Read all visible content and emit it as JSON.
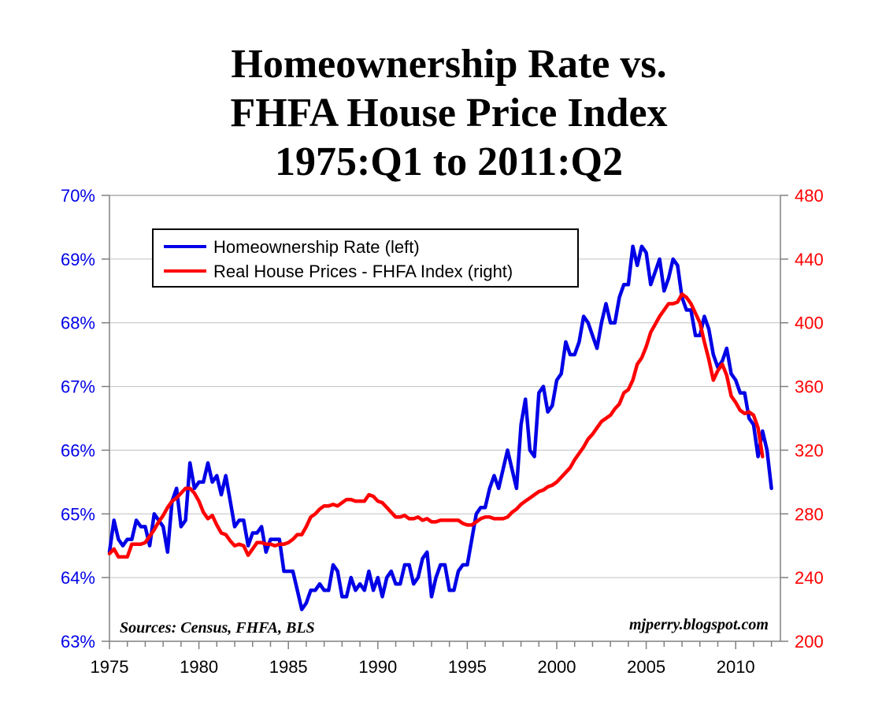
{
  "chart_data": {
    "type": "line",
    "title_lines": [
      "Homeownership Rate vs.",
      "FHFA House Price Index",
      "1975:Q1 to 2011:Q2"
    ],
    "x_ticks": [
      "1975",
      "1980",
      "1985",
      "1990",
      "1995",
      "2000",
      "2005",
      "2010"
    ],
    "x_range": [
      1975,
      2012.5
    ],
    "y_left": {
      "range": [
        63,
        70
      ],
      "ticks": [
        63,
        64,
        65,
        66,
        67,
        68,
        69,
        70
      ],
      "tick_labels": [
        "63%",
        "64%",
        "65%",
        "66%",
        "67%",
        "68%",
        "69%",
        "70%"
      ],
      "color": "#0000e6"
    },
    "y_right": {
      "range": [
        200,
        480
      ],
      "ticks": [
        200,
        240,
        280,
        320,
        360,
        400,
        440,
        480
      ],
      "tick_labels": [
        "200",
        "240",
        "280",
        "320",
        "360",
        "400",
        "440",
        "480"
      ],
      "color": "#ff0000"
    },
    "grid": "horizontal",
    "legend_position": "top-left",
    "series": [
      {
        "name": "Homeownership Rate (left)",
        "axis": "left",
        "color": "#0000e6",
        "points": [
          [
            1975.0,
            64.4
          ],
          [
            1975.25,
            64.9
          ],
          [
            1975.5,
            64.6
          ],
          [
            1975.75,
            64.5
          ],
          [
            1976.0,
            64.6
          ],
          [
            1976.25,
            64.6
          ],
          [
            1976.5,
            64.9
          ],
          [
            1976.75,
            64.8
          ],
          [
            1977.0,
            64.8
          ],
          [
            1977.25,
            64.5
          ],
          [
            1977.5,
            65.0
          ],
          [
            1977.75,
            64.9
          ],
          [
            1978.0,
            64.8
          ],
          [
            1978.25,
            64.4
          ],
          [
            1978.5,
            65.2
          ],
          [
            1978.75,
            65.4
          ],
          [
            1979.0,
            64.8
          ],
          [
            1979.25,
            64.9
          ],
          [
            1979.5,
            65.8
          ],
          [
            1979.75,
            65.4
          ],
          [
            1980.0,
            65.5
          ],
          [
            1980.25,
            65.5
          ],
          [
            1980.5,
            65.8
          ],
          [
            1980.75,
            65.5
          ],
          [
            1981.0,
            65.6
          ],
          [
            1981.25,
            65.3
          ],
          [
            1981.5,
            65.6
          ],
          [
            1981.75,
            65.2
          ],
          [
            1982.0,
            64.8
          ],
          [
            1982.25,
            64.9
          ],
          [
            1982.5,
            64.9
          ],
          [
            1982.75,
            64.5
          ],
          [
            1983.0,
            64.7
          ],
          [
            1983.25,
            64.7
          ],
          [
            1983.5,
            64.8
          ],
          [
            1983.75,
            64.4
          ],
          [
            1984.0,
            64.6
          ],
          [
            1984.25,
            64.6
          ],
          [
            1984.5,
            64.6
          ],
          [
            1984.75,
            64.1
          ],
          [
            1985.0,
            64.1
          ],
          [
            1985.25,
            64.1
          ],
          [
            1985.5,
            63.8
          ],
          [
            1985.75,
            63.5
          ],
          [
            1986.0,
            63.6
          ],
          [
            1986.25,
            63.8
          ],
          [
            1986.5,
            63.8
          ],
          [
            1986.75,
            63.9
          ],
          [
            1987.0,
            63.8
          ],
          [
            1987.25,
            63.8
          ],
          [
            1987.5,
            64.2
          ],
          [
            1987.75,
            64.1
          ],
          [
            1988.0,
            63.7
          ],
          [
            1988.25,
            63.7
          ],
          [
            1988.5,
            64.0
          ],
          [
            1988.75,
            63.8
          ],
          [
            1989.0,
            63.9
          ],
          [
            1989.25,
            63.8
          ],
          [
            1989.5,
            64.1
          ],
          [
            1989.75,
            63.8
          ],
          [
            1990.0,
            64.0
          ],
          [
            1990.25,
            63.7
          ],
          [
            1990.5,
            64.0
          ],
          [
            1990.75,
            64.1
          ],
          [
            1991.0,
            63.9
          ],
          [
            1991.25,
            63.9
          ],
          [
            1991.5,
            64.2
          ],
          [
            1991.75,
            64.2
          ],
          [
            1992.0,
            63.9
          ],
          [
            1992.25,
            64.0
          ],
          [
            1992.5,
            64.3
          ],
          [
            1992.75,
            64.4
          ],
          [
            1993.0,
            63.7
          ],
          [
            1993.25,
            64.0
          ],
          [
            1993.5,
            64.2
          ],
          [
            1993.75,
            64.2
          ],
          [
            1994.0,
            63.8
          ],
          [
            1994.25,
            63.8
          ],
          [
            1994.5,
            64.1
          ],
          [
            1994.75,
            64.2
          ],
          [
            1995.0,
            64.2
          ],
          [
            1995.25,
            64.6
          ],
          [
            1995.5,
            65.0
          ],
          [
            1995.75,
            65.1
          ],
          [
            1996.0,
            65.1
          ],
          [
            1996.25,
            65.4
          ],
          [
            1996.5,
            65.6
          ],
          [
            1996.75,
            65.4
          ],
          [
            1997.0,
            65.7
          ],
          [
            1997.25,
            66.0
          ],
          [
            1997.5,
            65.7
          ],
          [
            1997.75,
            65.4
          ],
          [
            1998.0,
            66.4
          ],
          [
            1998.25,
            66.8
          ],
          [
            1998.5,
            66.0
          ],
          [
            1998.75,
            65.9
          ],
          [
            1999.0,
            66.9
          ],
          [
            1999.25,
            67.0
          ],
          [
            1999.5,
            66.6
          ],
          [
            1999.75,
            66.7
          ],
          [
            2000.0,
            67.1
          ],
          [
            2000.25,
            67.2
          ],
          [
            2000.5,
            67.7
          ],
          [
            2000.75,
            67.5
          ],
          [
            2001.0,
            67.5
          ],
          [
            2001.25,
            67.7
          ],
          [
            2001.5,
            68.1
          ],
          [
            2001.75,
            68.0
          ],
          [
            2002.0,
            67.8
          ],
          [
            2002.25,
            67.6
          ],
          [
            2002.5,
            68.0
          ],
          [
            2002.75,
            68.3
          ],
          [
            2003.0,
            68.0
          ],
          [
            2003.25,
            68.0
          ],
          [
            2003.5,
            68.4
          ],
          [
            2003.75,
            68.6
          ],
          [
            2004.0,
            68.6
          ],
          [
            2004.25,
            69.2
          ],
          [
            2004.5,
            68.9
          ],
          [
            2004.75,
            69.2
          ],
          [
            2005.0,
            69.1
          ],
          [
            2005.25,
            68.6
          ],
          [
            2005.5,
            68.8
          ],
          [
            2005.75,
            69.0
          ],
          [
            2006.0,
            68.5
          ],
          [
            2006.25,
            68.7
          ],
          [
            2006.5,
            69.0
          ],
          [
            2006.75,
            68.9
          ],
          [
            2007.0,
            68.4
          ],
          [
            2007.25,
            68.2
          ],
          [
            2007.5,
            68.2
          ],
          [
            2007.75,
            67.8
          ],
          [
            2008.0,
            67.8
          ],
          [
            2008.25,
            68.1
          ],
          [
            2008.5,
            67.9
          ],
          [
            2008.75,
            67.5
          ],
          [
            2009.0,
            67.3
          ],
          [
            2009.25,
            67.4
          ],
          [
            2009.5,
            67.6
          ],
          [
            2009.75,
            67.2
          ],
          [
            2010.0,
            67.1
          ],
          [
            2010.25,
            66.9
          ],
          [
            2010.5,
            66.9
          ],
          [
            2010.75,
            66.5
          ],
          [
            2011.0,
            66.4
          ],
          [
            2011.25,
            65.9
          ],
          [
            2011.5,
            66.3
          ],
          [
            2011.75,
            66.0
          ],
          [
            2012.0,
            65.4
          ]
        ]
      },
      {
        "name": "Real House Prices - FHFA Index (right)",
        "axis": "right",
        "color": "#ff0000",
        "points": [
          [
            1975.0,
            255
          ],
          [
            1975.25,
            258
          ],
          [
            1975.5,
            253
          ],
          [
            1975.75,
            253
          ],
          [
            1976.0,
            253
          ],
          [
            1976.25,
            261
          ],
          [
            1976.5,
            261
          ],
          [
            1976.75,
            261
          ],
          [
            1977.0,
            262
          ],
          [
            1977.25,
            266
          ],
          [
            1977.5,
            270
          ],
          [
            1977.75,
            275
          ],
          [
            1978.0,
            279
          ],
          [
            1978.25,
            284
          ],
          [
            1978.5,
            288
          ],
          [
            1978.75,
            290
          ],
          [
            1979.0,
            293
          ],
          [
            1979.25,
            296
          ],
          [
            1979.5,
            296
          ],
          [
            1979.75,
            293
          ],
          [
            1980.0,
            288
          ],
          [
            1980.25,
            281
          ],
          [
            1980.5,
            277
          ],
          [
            1980.75,
            279
          ],
          [
            1981.0,
            273
          ],
          [
            1981.25,
            268
          ],
          [
            1981.5,
            267
          ],
          [
            1981.75,
            263
          ],
          [
            1982.0,
            260
          ],
          [
            1982.25,
            261
          ],
          [
            1982.5,
            260
          ],
          [
            1982.75,
            254
          ],
          [
            1983.0,
            258
          ],
          [
            1983.25,
            262
          ],
          [
            1983.5,
            262
          ],
          [
            1983.75,
            261
          ],
          [
            1984.0,
            261
          ],
          [
            1984.25,
            260
          ],
          [
            1984.5,
            261
          ],
          [
            1984.75,
            261
          ],
          [
            1985.0,
            262
          ],
          [
            1985.25,
            264
          ],
          [
            1985.5,
            267
          ],
          [
            1985.75,
            267
          ],
          [
            1986.0,
            272
          ],
          [
            1986.25,
            278
          ],
          [
            1986.5,
            280
          ],
          [
            1986.75,
            283
          ],
          [
            1987.0,
            285
          ],
          [
            1987.25,
            285
          ],
          [
            1987.5,
            286
          ],
          [
            1987.75,
            285
          ],
          [
            1988.0,
            287
          ],
          [
            1988.25,
            289
          ],
          [
            1988.5,
            289
          ],
          [
            1988.75,
            288
          ],
          [
            1989.0,
            288
          ],
          [
            1989.25,
            288
          ],
          [
            1989.5,
            292
          ],
          [
            1989.75,
            291
          ],
          [
            1990.0,
            288
          ],
          [
            1990.25,
            287
          ],
          [
            1990.5,
            284
          ],
          [
            1990.75,
            281
          ],
          [
            1991.0,
            278
          ],
          [
            1991.25,
            278
          ],
          [
            1991.5,
            279
          ],
          [
            1991.75,
            277
          ],
          [
            1992.0,
            277
          ],
          [
            1992.25,
            278
          ],
          [
            1992.5,
            276
          ],
          [
            1992.75,
            277
          ],
          [
            1993.0,
            275
          ],
          [
            1993.25,
            275
          ],
          [
            1993.5,
            276
          ],
          [
            1993.75,
            276
          ],
          [
            1994.0,
            276
          ],
          [
            1994.25,
            276
          ],
          [
            1994.5,
            276
          ],
          [
            1994.75,
            274
          ],
          [
            1995.0,
            273
          ],
          [
            1995.25,
            273
          ],
          [
            1995.5,
            275
          ],
          [
            1995.75,
            277
          ],
          [
            1996.0,
            278
          ],
          [
            1996.25,
            278
          ],
          [
            1996.5,
            277
          ],
          [
            1996.75,
            277
          ],
          [
            1997.0,
            277
          ],
          [
            1997.25,
            278
          ],
          [
            1997.5,
            281
          ],
          [
            1997.75,
            283
          ],
          [
            1998.0,
            286
          ],
          [
            1998.25,
            288
          ],
          [
            1998.5,
            290
          ],
          [
            1998.75,
            292
          ],
          [
            1999.0,
            294
          ],
          [
            1999.25,
            295
          ],
          [
            1999.5,
            297
          ],
          [
            1999.75,
            298
          ],
          [
            2000.0,
            300
          ],
          [
            2000.25,
            303
          ],
          [
            2000.5,
            306
          ],
          [
            2000.75,
            309
          ],
          [
            2001.0,
            314
          ],
          [
            2001.25,
            318
          ],
          [
            2001.5,
            322
          ],
          [
            2001.75,
            327
          ],
          [
            2002.0,
            330
          ],
          [
            2002.25,
            334
          ],
          [
            2002.5,
            338
          ],
          [
            2002.75,
            340
          ],
          [
            2003.0,
            342
          ],
          [
            2003.25,
            346
          ],
          [
            2003.5,
            349
          ],
          [
            2003.75,
            356
          ],
          [
            2004.0,
            358
          ],
          [
            2004.25,
            364
          ],
          [
            2004.5,
            374
          ],
          [
            2004.75,
            378
          ],
          [
            2005.0,
            385
          ],
          [
            2005.25,
            394
          ],
          [
            2005.5,
            399
          ],
          [
            2005.75,
            404
          ],
          [
            2006.0,
            408
          ],
          [
            2006.25,
            412
          ],
          [
            2006.5,
            412
          ],
          [
            2006.75,
            413
          ],
          [
            2007.0,
            418
          ],
          [
            2007.25,
            416
          ],
          [
            2007.5,
            412
          ],
          [
            2007.75,
            406
          ],
          [
            2008.0,
            400
          ],
          [
            2008.25,
            388
          ],
          [
            2008.5,
            377
          ],
          [
            2008.75,
            364
          ],
          [
            2009.0,
            370
          ],
          [
            2009.25,
            374
          ],
          [
            2009.5,
            367
          ],
          [
            2009.75,
            354
          ],
          [
            2010.0,
            350
          ],
          [
            2010.25,
            345
          ],
          [
            2010.5,
            343
          ],
          [
            2010.75,
            344
          ],
          [
            2011.0,
            342
          ],
          [
            2011.25,
            334
          ],
          [
            2011.5,
            316
          ]
        ]
      }
    ],
    "annotations": {
      "source": "Sources: Census, FHFA, BLS",
      "credit": "mjperry.blogspot.com"
    }
  }
}
